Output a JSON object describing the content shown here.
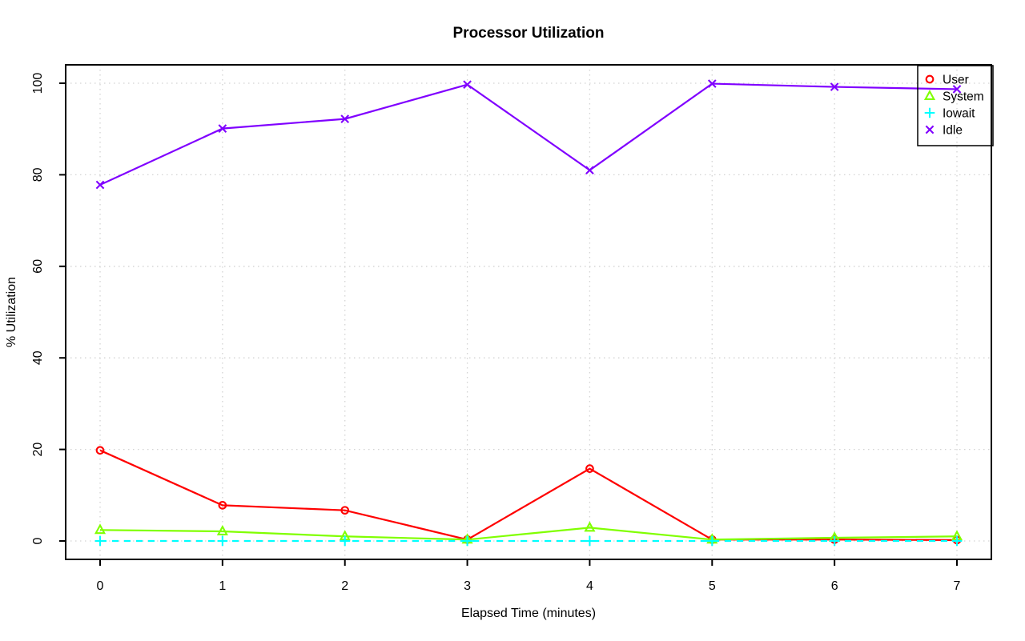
{
  "chart_data": {
    "type": "line",
    "title": "Processor Utilization",
    "xlabel": "Elapsed Time (minutes)",
    "ylabel": "% Utilization",
    "x": [
      0,
      1,
      2,
      3,
      4,
      5,
      6,
      7
    ],
    "xticks": [
      0,
      1,
      2,
      3,
      4,
      5,
      6,
      7
    ],
    "yticks": [
      0,
      20,
      40,
      60,
      80,
      100
    ],
    "xlim": [
      0,
      7
    ],
    "ylim": [
      0,
      100
    ],
    "grid": "dotted light-gray at every tick",
    "grid_color": "#d3d3d3",
    "legend_position": "top-right",
    "legend_background": "transparent",
    "series": [
      {
        "name": "User",
        "color": "#FF0000",
        "marker": "circle",
        "line": "solid",
        "values": [
          19.8,
          7.8,
          6.7,
          0.3,
          15.8,
          0.3,
          0.3,
          0.2
        ]
      },
      {
        "name": "System",
        "color": "#80FF00",
        "marker": "triangle",
        "line": "solid",
        "values": [
          2.4,
          2.1,
          1.0,
          0.3,
          2.9,
          0.3,
          0.7,
          1.0
        ]
      },
      {
        "name": "Iowait",
        "color": "#00FFFF",
        "marker": "plus",
        "line": "dashed",
        "values": [
          0,
          0,
          0,
          0,
          0,
          0,
          0,
          0
        ]
      },
      {
        "name": "Idle",
        "color": "#8000FF",
        "marker": "x",
        "line": "solid",
        "values": [
          77.8,
          90.1,
          92.2,
          99.7,
          81.0,
          99.9,
          99.2,
          98.7
        ]
      }
    ]
  }
}
